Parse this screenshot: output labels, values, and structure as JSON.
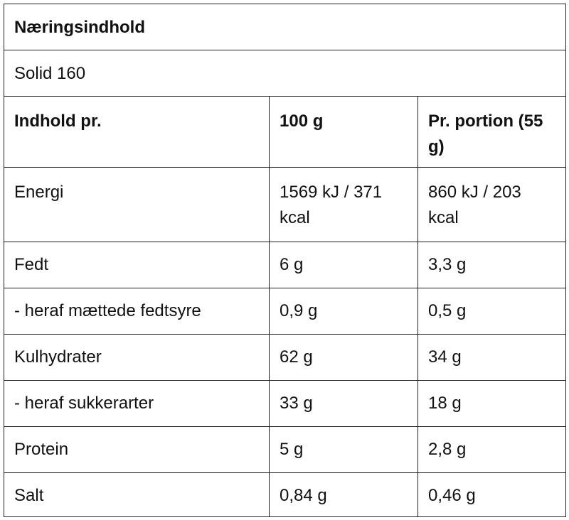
{
  "header": {
    "title": "Næringsindhold",
    "subtitle": "Solid 160"
  },
  "table": {
    "columns": [
      "Indhold pr.",
      "100 g",
      "Pr. portion (55 g)"
    ],
    "rows": [
      [
        "Energi",
        "1569 kJ / 371 kcal",
        "860 kJ / 203 kcal"
      ],
      [
        "Fedt",
        "6 g",
        "3,3 g"
      ],
      [
        "- heraf mættede fedtsyre",
        "0,9 g",
        "0,5 g"
      ],
      [
        "Kulhydrater",
        "62 g",
        "34 g"
      ],
      [
        "- heraf sukkerarter",
        "33 g",
        "18 g"
      ],
      [
        "Protein",
        "5 g",
        "2,8 g"
      ],
      [
        "Salt",
        "0,84 g",
        "0,46 g"
      ]
    ]
  }
}
